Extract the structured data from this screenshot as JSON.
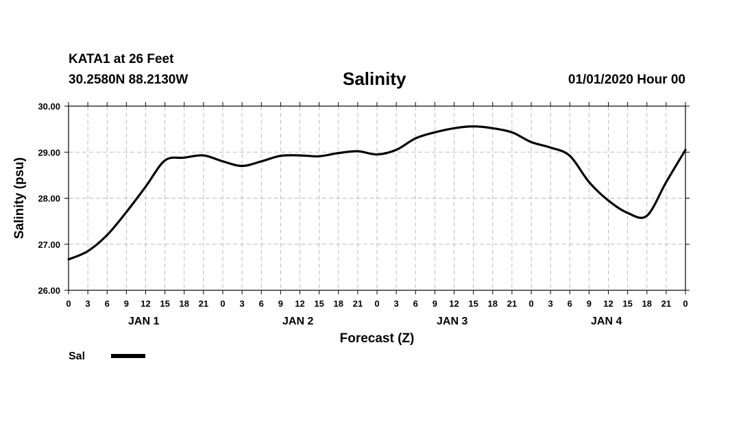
{
  "header": {
    "station": "KATA1 at 26 Feet",
    "coords": "30.2580N 88.2130W",
    "forecast_time": "01/01/2020 Hour 00"
  },
  "chart_data": {
    "type": "line",
    "title": "Salinity",
    "xlabel": "Forecast (Z)",
    "ylabel": "Salinity (psu)",
    "ylim": [
      26.0,
      30.0
    ],
    "yticks": [
      "26.00",
      "27.00",
      "28.00",
      "29.00",
      "30.00"
    ],
    "xlim": [
      "2020-01-01 00Z",
      "2020-01-05 00Z"
    ],
    "xtick_labels": [
      "0",
      "3",
      "6",
      "9",
      "12",
      "15",
      "18",
      "21",
      "0",
      "3",
      "6",
      "9",
      "12",
      "15",
      "18",
      "21",
      "0",
      "3",
      "6",
      "9",
      "12",
      "15",
      "18",
      "21",
      "0",
      "3",
      "6",
      "9",
      "12",
      "15",
      "18",
      "21",
      "0"
    ],
    "day_labels": [
      "JAN 1",
      "JAN 2",
      "JAN 3",
      "JAN 4"
    ],
    "grid": true,
    "legend_position": "bottom-left",
    "series": [
      {
        "name": "Sal",
        "color": "#000000",
        "points": [
          [
            "2020-01-01 00Z",
            26.67
          ],
          [
            "2020-01-01 03Z",
            26.85
          ],
          [
            "2020-01-01 06Z",
            27.2
          ],
          [
            "2020-01-01 09Z",
            27.7
          ],
          [
            "2020-01-01 12Z",
            28.25
          ],
          [
            "2020-01-01 15Z",
            28.82
          ],
          [
            "2020-01-01 18Z",
            28.88
          ],
          [
            "2020-01-01 21Z",
            28.93
          ],
          [
            "2020-01-02 00Z",
            28.8
          ],
          [
            "2020-01-02 03Z",
            28.7
          ],
          [
            "2020-01-02 06Z",
            28.8
          ],
          [
            "2020-01-02 09Z",
            28.92
          ],
          [
            "2020-01-02 12Z",
            28.93
          ],
          [
            "2020-01-02 15Z",
            28.91
          ],
          [
            "2020-01-02 18Z",
            28.98
          ],
          [
            "2020-01-02 21Z",
            29.02
          ],
          [
            "2020-01-03 00Z",
            28.95
          ],
          [
            "2020-01-03 03Z",
            29.05
          ],
          [
            "2020-01-03 06Z",
            29.3
          ],
          [
            "2020-01-03 09Z",
            29.43
          ],
          [
            "2020-01-03 12Z",
            29.52
          ],
          [
            "2020-01-03 15Z",
            29.56
          ],
          [
            "2020-01-03 18Z",
            29.52
          ],
          [
            "2020-01-03 21Z",
            29.43
          ],
          [
            "2020-01-04 00Z",
            29.22
          ],
          [
            "2020-01-04 03Z",
            29.1
          ],
          [
            "2020-01-04 06Z",
            28.92
          ],
          [
            "2020-01-04 09Z",
            28.35
          ],
          [
            "2020-01-04 12Z",
            27.95
          ],
          [
            "2020-01-04 15Z",
            27.68
          ],
          [
            "2020-01-04 18Z",
            27.62
          ],
          [
            "2020-01-04 21Z",
            28.35
          ],
          [
            "2020-01-05 00Z",
            29.05
          ]
        ]
      }
    ]
  }
}
